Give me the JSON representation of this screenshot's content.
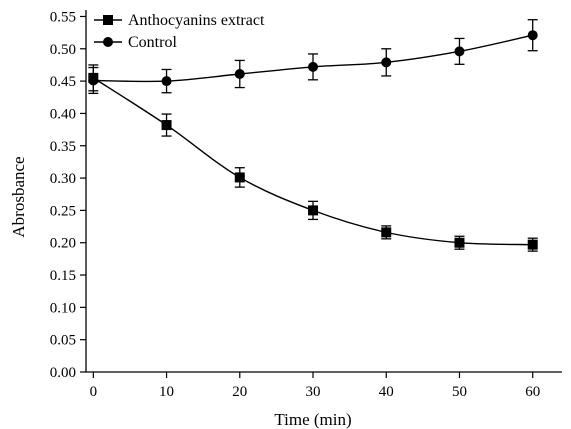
{
  "chart_data": {
    "type": "line",
    "title": "",
    "xlabel": "Time (min)",
    "ylabel": "Abrosbance",
    "xlim": [
      -1,
      64
    ],
    "ylim": [
      0.0,
      0.56
    ],
    "x_ticks": [
      0,
      10,
      20,
      30,
      40,
      50,
      60
    ],
    "x_tick_labels": [
      "0",
      "10",
      "20",
      "30",
      "40",
      "50",
      "60"
    ],
    "y_ticks": [
      0.0,
      0.05,
      0.1,
      0.15,
      0.2,
      0.25,
      0.3,
      0.35,
      0.4,
      0.45,
      0.5,
      0.55
    ],
    "y_tick_labels": [
      "0.00",
      "0.05",
      "0.10",
      "0.15",
      "0.20",
      "0.25",
      "0.30",
      "0.35",
      "0.40",
      "0.45",
      "0.50",
      "0.55"
    ],
    "grid": false,
    "legend_position": "top-left",
    "x": [
      0,
      10,
      20,
      30,
      40,
      50,
      60
    ],
    "series": [
      {
        "name": "Anthocyanins extract",
        "marker": "square",
        "values": [
          0.455,
          0.382,
          0.301,
          0.25,
          0.216,
          0.2,
          0.197
        ],
        "errors": [
          0.02,
          0.017,
          0.015,
          0.014,
          0.01,
          0.01,
          0.01
        ]
      },
      {
        "name": "Control",
        "marker": "circle",
        "values": [
          0.451,
          0.45,
          0.461,
          0.472,
          0.479,
          0.496,
          0.521
        ],
        "errors": [
          0.02,
          0.018,
          0.021,
          0.02,
          0.021,
          0.02,
          0.024
        ]
      }
    ]
  }
}
